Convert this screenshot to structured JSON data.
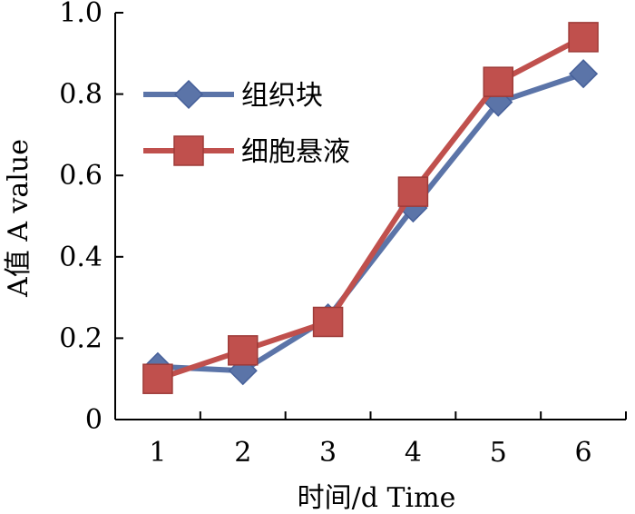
{
  "chart_data": {
    "type": "line",
    "xlabel": "时间/d Time",
    "ylabel": "A值 A value",
    "categories": [
      "1",
      "2",
      "3",
      "4",
      "5",
      "6"
    ],
    "x": [
      1,
      2,
      3,
      4,
      5,
      6
    ],
    "xlim": [
      0.5,
      6.5
    ],
    "ylim": [
      0,
      1.0
    ],
    "yticks": [
      0,
      0.2,
      0.4,
      0.6,
      0.8,
      1.0
    ],
    "ytick_labels": [
      "0",
      "0.2",
      "0.4",
      "0.6",
      "0.8",
      "1.0"
    ],
    "grid": false,
    "legend_position": "top-left",
    "series": [
      {
        "name": "组织块",
        "marker": "diamond",
        "color": "#5b74a8",
        "values": [
          0.13,
          0.12,
          0.25,
          0.52,
          0.78,
          0.85
        ]
      },
      {
        "name": "细胞悬液",
        "marker": "square",
        "color": "#c0504d",
        "values": [
          0.1,
          0.17,
          0.24,
          0.56,
          0.83,
          0.94
        ]
      }
    ]
  }
}
